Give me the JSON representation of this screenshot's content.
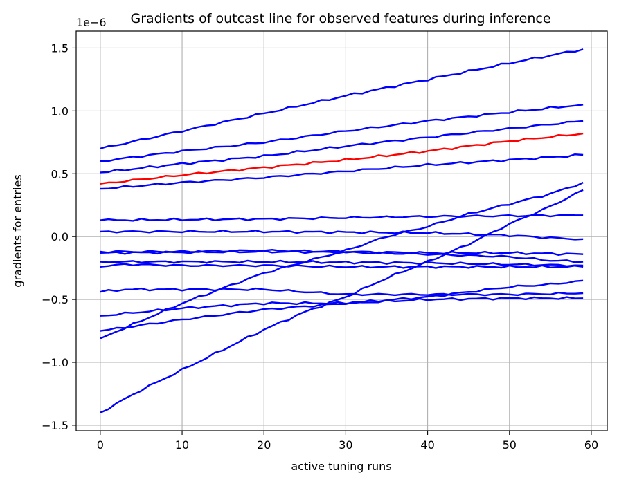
{
  "chart_data": {
    "type": "line",
    "title": "Gradients of outcast line for observed features during inference",
    "xlabel": "active tuning runs",
    "ylabel": "gradients for entries",
    "y_offset_label": "1e−6",
    "xlim": [
      -2.95,
      61.95
    ],
    "ylim": [
      -1.5445,
      1.6345
    ],
    "x_ticks": [
      0,
      10,
      20,
      30,
      40,
      50,
      60
    ],
    "x_tick_labels": [
      "0",
      "10",
      "20",
      "30",
      "40",
      "50",
      "60"
    ],
    "y_ticks": [
      -1.5,
      -1.0,
      -0.5,
      0.0,
      0.5,
      1.0,
      1.5
    ],
    "y_tick_labels": [
      "−1.5",
      "−1.0",
      "−0.5",
      "0.0",
      "0.5",
      "1.0",
      "1.5"
    ],
    "grid": true,
    "legend": "none",
    "x_start": 0,
    "x_end": 59,
    "series": [
      {
        "color": "#0000ff",
        "anchors": [
          [
            0,
            0.7
          ],
          [
            10,
            0.84
          ],
          [
            20,
            0.98
          ],
          [
            30,
            1.12
          ],
          [
            40,
            1.25
          ],
          [
            50,
            1.38
          ],
          [
            59,
            1.49
          ]
        ]
      },
      {
        "color": "#0000ff",
        "anchors": [
          [
            0,
            0.6
          ],
          [
            10,
            0.68
          ],
          [
            20,
            0.75
          ],
          [
            30,
            0.84
          ],
          [
            40,
            0.92
          ],
          [
            50,
            0.99
          ],
          [
            59,
            1.05
          ]
        ]
      },
      {
        "color": "#0000ff",
        "anchors": [
          [
            0,
            0.51
          ],
          [
            10,
            0.58
          ],
          [
            20,
            0.64
          ],
          [
            30,
            0.72
          ],
          [
            40,
            0.79
          ],
          [
            50,
            0.86
          ],
          [
            59,
            0.92
          ]
        ]
      },
      {
        "color": "#ff0000",
        "anchors": [
          [
            0,
            0.42
          ],
          [
            10,
            0.49
          ],
          [
            20,
            0.55
          ],
          [
            30,
            0.61
          ],
          [
            40,
            0.68
          ],
          [
            50,
            0.76
          ],
          [
            59,
            0.82
          ]
        ]
      },
      {
        "color": "#0000ff",
        "anchors": [
          [
            0,
            0.38
          ],
          [
            10,
            0.43
          ],
          [
            20,
            0.47
          ],
          [
            30,
            0.52
          ],
          [
            40,
            0.57
          ],
          [
            50,
            0.61
          ],
          [
            59,
            0.65
          ]
        ]
      },
      {
        "color": "#0000ff",
        "anchors": [
          [
            0,
            0.13
          ],
          [
            20,
            0.14
          ],
          [
            40,
            0.16
          ],
          [
            59,
            0.17
          ]
        ]
      },
      {
        "color": "#0000ff",
        "anchors": [
          [
            0,
            0.04
          ],
          [
            20,
            0.04
          ],
          [
            30,
            0.035
          ],
          [
            40,
            0.03
          ],
          [
            45,
            0.02
          ],
          [
            50,
            0.01
          ],
          [
            55,
            -0.01
          ],
          [
            59,
            -0.02
          ]
        ]
      },
      {
        "color": "#0000ff",
        "anchors": [
          [
            0,
            -0.12
          ],
          [
            10,
            -0.12
          ],
          [
            20,
            -0.11
          ],
          [
            30,
            -0.12
          ],
          [
            40,
            -0.13
          ],
          [
            50,
            -0.13
          ],
          [
            59,
            -0.14
          ]
        ]
      },
      {
        "color": "#0000ff",
        "anchors": [
          [
            0,
            -0.13
          ],
          [
            10,
            -0.125
          ],
          [
            20,
            -0.12
          ],
          [
            30,
            -0.125
          ],
          [
            40,
            -0.14
          ],
          [
            45,
            -0.15
          ],
          [
            50,
            -0.16
          ],
          [
            55,
            -0.19
          ],
          [
            59,
            -0.2
          ]
        ]
      },
      {
        "color": "#0000ff",
        "anchors": [
          [
            0,
            -0.2
          ],
          [
            20,
            -0.2
          ],
          [
            40,
            -0.21
          ],
          [
            59,
            -0.23
          ]
        ]
      },
      {
        "color": "#0000ff",
        "anchors": [
          [
            0,
            -0.24
          ],
          [
            3,
            -0.22
          ],
          [
            10,
            -0.23
          ],
          [
            20,
            -0.23
          ],
          [
            30,
            -0.24
          ],
          [
            40,
            -0.24
          ],
          [
            50,
            -0.24
          ],
          [
            59,
            -0.24
          ]
        ]
      },
      {
        "color": "#0000ff",
        "anchors": [
          [
            0,
            -0.44
          ],
          [
            3,
            -0.42
          ],
          [
            10,
            -0.42
          ],
          [
            20,
            -0.42
          ],
          [
            30,
            -0.46
          ],
          [
            40,
            -0.46
          ],
          [
            50,
            -0.46
          ],
          [
            59,
            -0.45
          ]
        ]
      },
      {
        "color": "#0000ff",
        "anchors": [
          [
            0,
            -0.63
          ],
          [
            10,
            -0.57
          ],
          [
            20,
            -0.53
          ],
          [
            25,
            -0.53
          ],
          [
            30,
            -0.53
          ],
          [
            40,
            -0.48
          ],
          [
            45,
            -0.44
          ],
          [
            50,
            -0.4
          ],
          [
            55,
            -0.38
          ],
          [
            59,
            -0.35
          ]
        ]
      },
      {
        "color": "#0000ff",
        "anchors": [
          [
            0,
            -0.75
          ],
          [
            10,
            -0.66
          ],
          [
            20,
            -0.58
          ],
          [
            30,
            -0.53
          ],
          [
            40,
            -0.5
          ],
          [
            50,
            -0.49
          ],
          [
            59,
            -0.49
          ]
        ]
      },
      {
        "color": "#0000ff",
        "anchors": [
          [
            0,
            -0.81
          ],
          [
            10,
            -0.53
          ],
          [
            20,
            -0.29
          ],
          [
            30,
            -0.11
          ],
          [
            35,
            0.0
          ],
          [
            40,
            0.08
          ],
          [
            45,
            0.18
          ],
          [
            50,
            0.26
          ],
          [
            55,
            0.34
          ],
          [
            59,
            0.43
          ]
        ]
      },
      {
        "color": "#0000ff",
        "anchors": [
          [
            0,
            -1.4
          ],
          [
            5,
            -1.22
          ],
          [
            10,
            -1.06
          ],
          [
            15,
            -0.9
          ],
          [
            20,
            -0.74
          ],
          [
            25,
            -0.6
          ],
          [
            30,
            -0.48
          ],
          [
            35,
            -0.33
          ],
          [
            40,
            -0.2
          ],
          [
            45,
            -0.06
          ],
          [
            50,
            0.1
          ],
          [
            55,
            0.24
          ],
          [
            59,
            0.37
          ]
        ]
      }
    ]
  }
}
